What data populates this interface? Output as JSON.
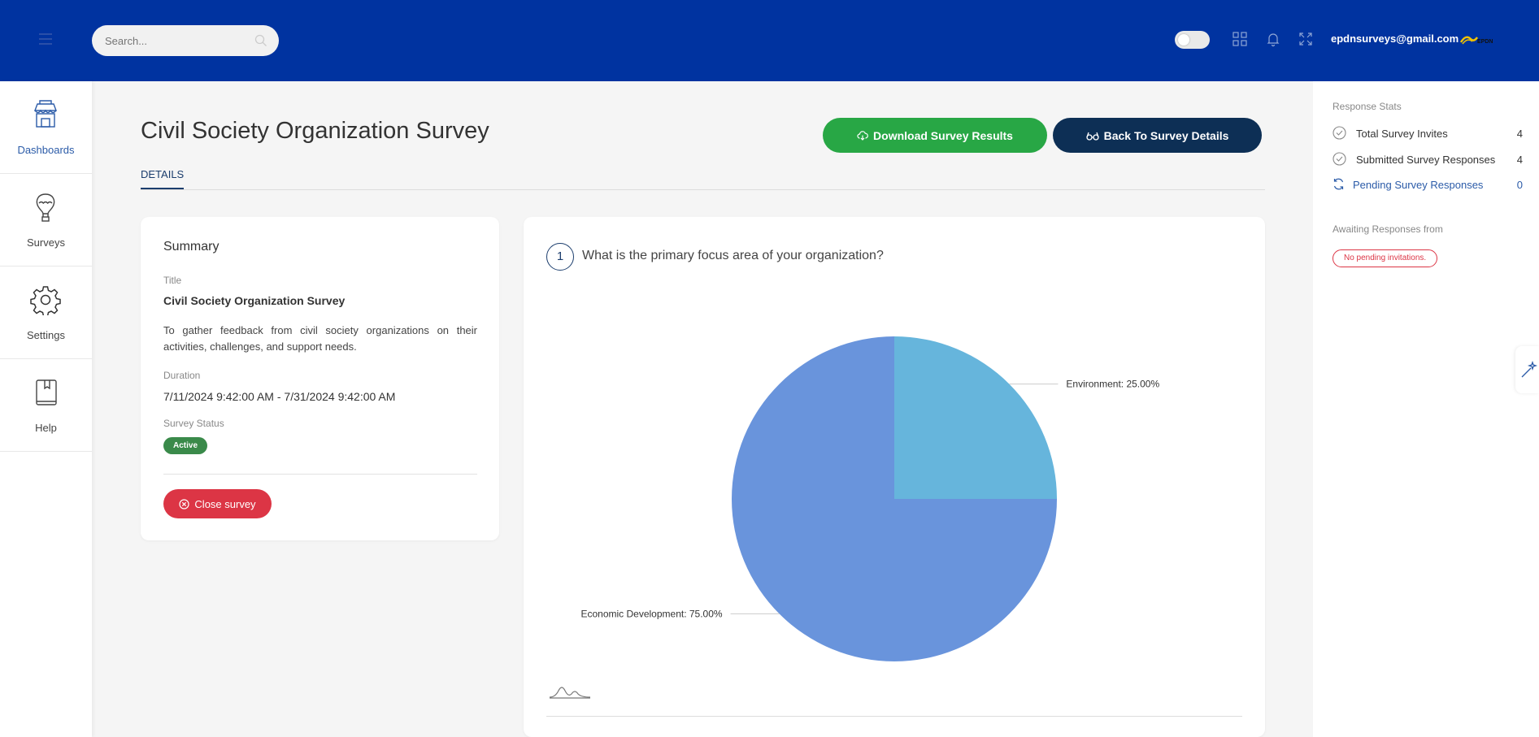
{
  "header": {
    "search_placeholder": "Search...",
    "user_email": "epdnsurveys@gmail.com",
    "logo_text": "EPDN"
  },
  "nav": {
    "items": [
      {
        "label": "Dashboards",
        "icon": "store-icon"
      },
      {
        "label": "Surveys",
        "icon": "hot-air-balloon-icon"
      },
      {
        "label": "Settings",
        "icon": "gear-icon"
      },
      {
        "label": "Help",
        "icon": "book-icon"
      }
    ]
  },
  "page": {
    "title": "Civil Society Organization Survey",
    "download_label": "Download Survey Results",
    "back_label": "Back To Survey Details",
    "tab_details": "DETAILS"
  },
  "summary": {
    "heading": "Summary",
    "title_label": "Title",
    "title_value": "Civil Society Organization Survey",
    "description": "To gather feedback from civil society organizations on their activities, challenges, and support needs.",
    "duration_label": "Duration",
    "duration_value": "7/11/2024 9:42:00 AM - 7/31/2024 9:42:00 AM",
    "status_label": "Survey Status",
    "status_value": "Active",
    "close_label": "Close survey"
  },
  "question": {
    "number": "1",
    "text": "What is the primary focus area of your organization?"
  },
  "chart_data": {
    "type": "pie",
    "slices": [
      {
        "label": "Environment: 25.00%",
        "category": "Environment",
        "value": 25.0,
        "color": "#66b5dc"
      },
      {
        "label": "Economic Development: 75.00%",
        "category": "Economic Development",
        "value": 75.0,
        "color": "#6994dc"
      }
    ]
  },
  "stats": {
    "heading": "Response Stats",
    "rows": [
      {
        "label": "Total Survey Invites",
        "count": "4"
      },
      {
        "label": "Submitted Survey Responses",
        "count": "4"
      },
      {
        "label": "Pending Survey Responses",
        "count": "0"
      }
    ],
    "awaiting_heading": "Awaiting Responses from",
    "no_pending": "No pending invitations."
  },
  "colors": {
    "topbar": "#0033a0",
    "download_button": "#28a745",
    "back_button": "#0d2f55",
    "close_button": "#dc3545",
    "active_badge": "#3a8a4a"
  }
}
